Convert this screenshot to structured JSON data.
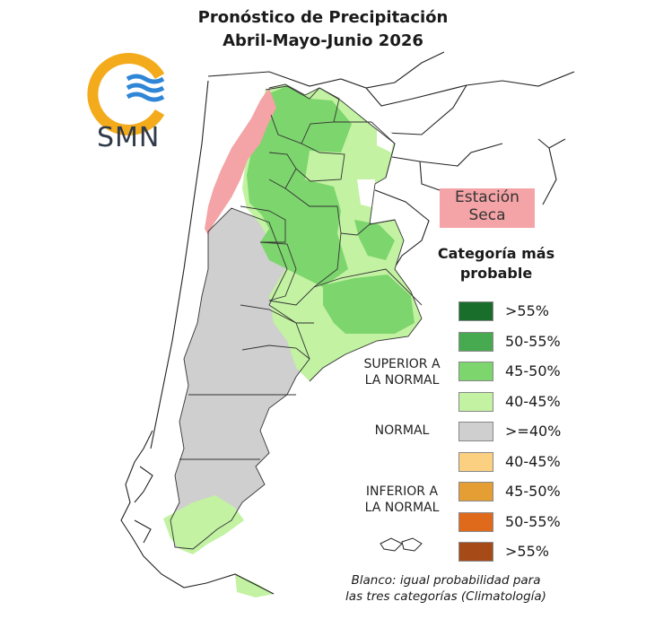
{
  "title_line1": "Pronóstico de Precipitación",
  "title_line2": "Abril-Mayo-Junio 2026",
  "logo_text": "SMN",
  "dry_season_label": "Estación Seca",
  "legend": {
    "title": "Categoría más probable",
    "items": [
      {
        "label": ">55%",
        "color": "#1a6e2c"
      },
      {
        "label": "50-55%",
        "color": "#48aa50"
      },
      {
        "label": "45-50%",
        "color": "#7dd56d"
      },
      {
        "label": "40-45%",
        "color": "#c2f2a2"
      },
      {
        "label": ">=40%",
        "color": "#cfcfcf"
      },
      {
        "label": "40-45%",
        "color": "#fbd181"
      },
      {
        "label": "45-50%",
        "color": "#e49e34"
      },
      {
        "label": "50-55%",
        "color": "#df6a1b"
      },
      {
        "label": ">55%",
        "color": "#a64a17"
      }
    ],
    "groups": {
      "above": "SUPERIOR A LA NORMAL",
      "normal": "NORMAL",
      "below": "INFERIOR A LA NORMAL"
    }
  },
  "note_line1": "Blanco: igual probabilidad para",
  "note_line2": "las tres categorías (Climatología)",
  "colors": {
    "dry": "#f4a3a6",
    "above_40_45": "#c2f2a2",
    "above_45_50": "#7dd56d",
    "normal": "#cfcfcf",
    "logo_sun": "#f3ab1c",
    "logo_waves": "#2f86d6"
  }
}
